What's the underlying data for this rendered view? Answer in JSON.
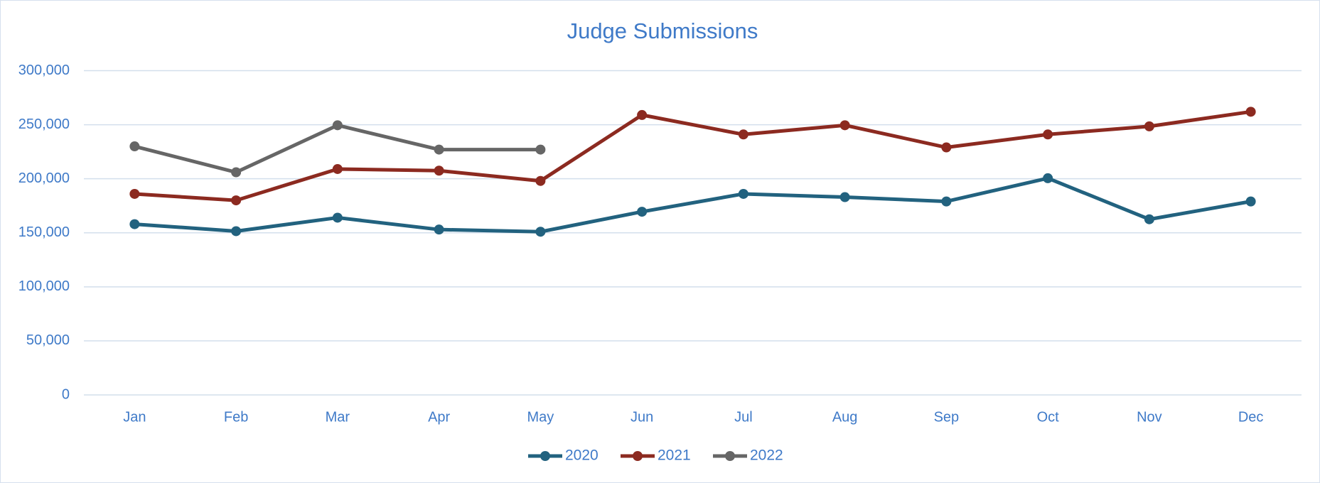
{
  "chart_data": {
    "type": "line",
    "title": "Judge Submissions",
    "categories": [
      "Jan",
      "Feb",
      "Mar",
      "Apr",
      "May",
      "Jun",
      "Jul",
      "Aug",
      "Sep",
      "Oct",
      "Nov",
      "Dec"
    ],
    "series": [
      {
        "name": "2020",
        "color": "#22627f",
        "values": [
          158000,
          151500,
          164000,
          153000,
          151000,
          169500,
          186000,
          183000,
          179000,
          200500,
          162500,
          179000
        ]
      },
      {
        "name": "2021",
        "color": "#8c2a20",
        "values": [
          186000,
          180000,
          209000,
          207500,
          198000,
          259000,
          241000,
          249500,
          229000,
          241000,
          248500,
          262000
        ]
      },
      {
        "name": "2022",
        "color": "#666666",
        "values": [
          230000,
          206000,
          249500,
          227000,
          227000,
          null,
          null,
          null,
          null,
          null,
          null,
          null
        ]
      }
    ],
    "ylim": [
      0,
      300000
    ],
    "yticks": [
      0,
      {
        "value": 50000,
        "label": "50,000"
      },
      {
        "value": 100000,
        "label": "100,000"
      },
      {
        "value": 150000,
        "label": "150,000"
      },
      {
        "value": 200000,
        "label": "200,000"
      },
      {
        "value": 250000,
        "label": "250,000"
      },
      {
        "value": 300000,
        "label": "300,000"
      }
    ],
    "grid": true,
    "legend": "bottom"
  }
}
